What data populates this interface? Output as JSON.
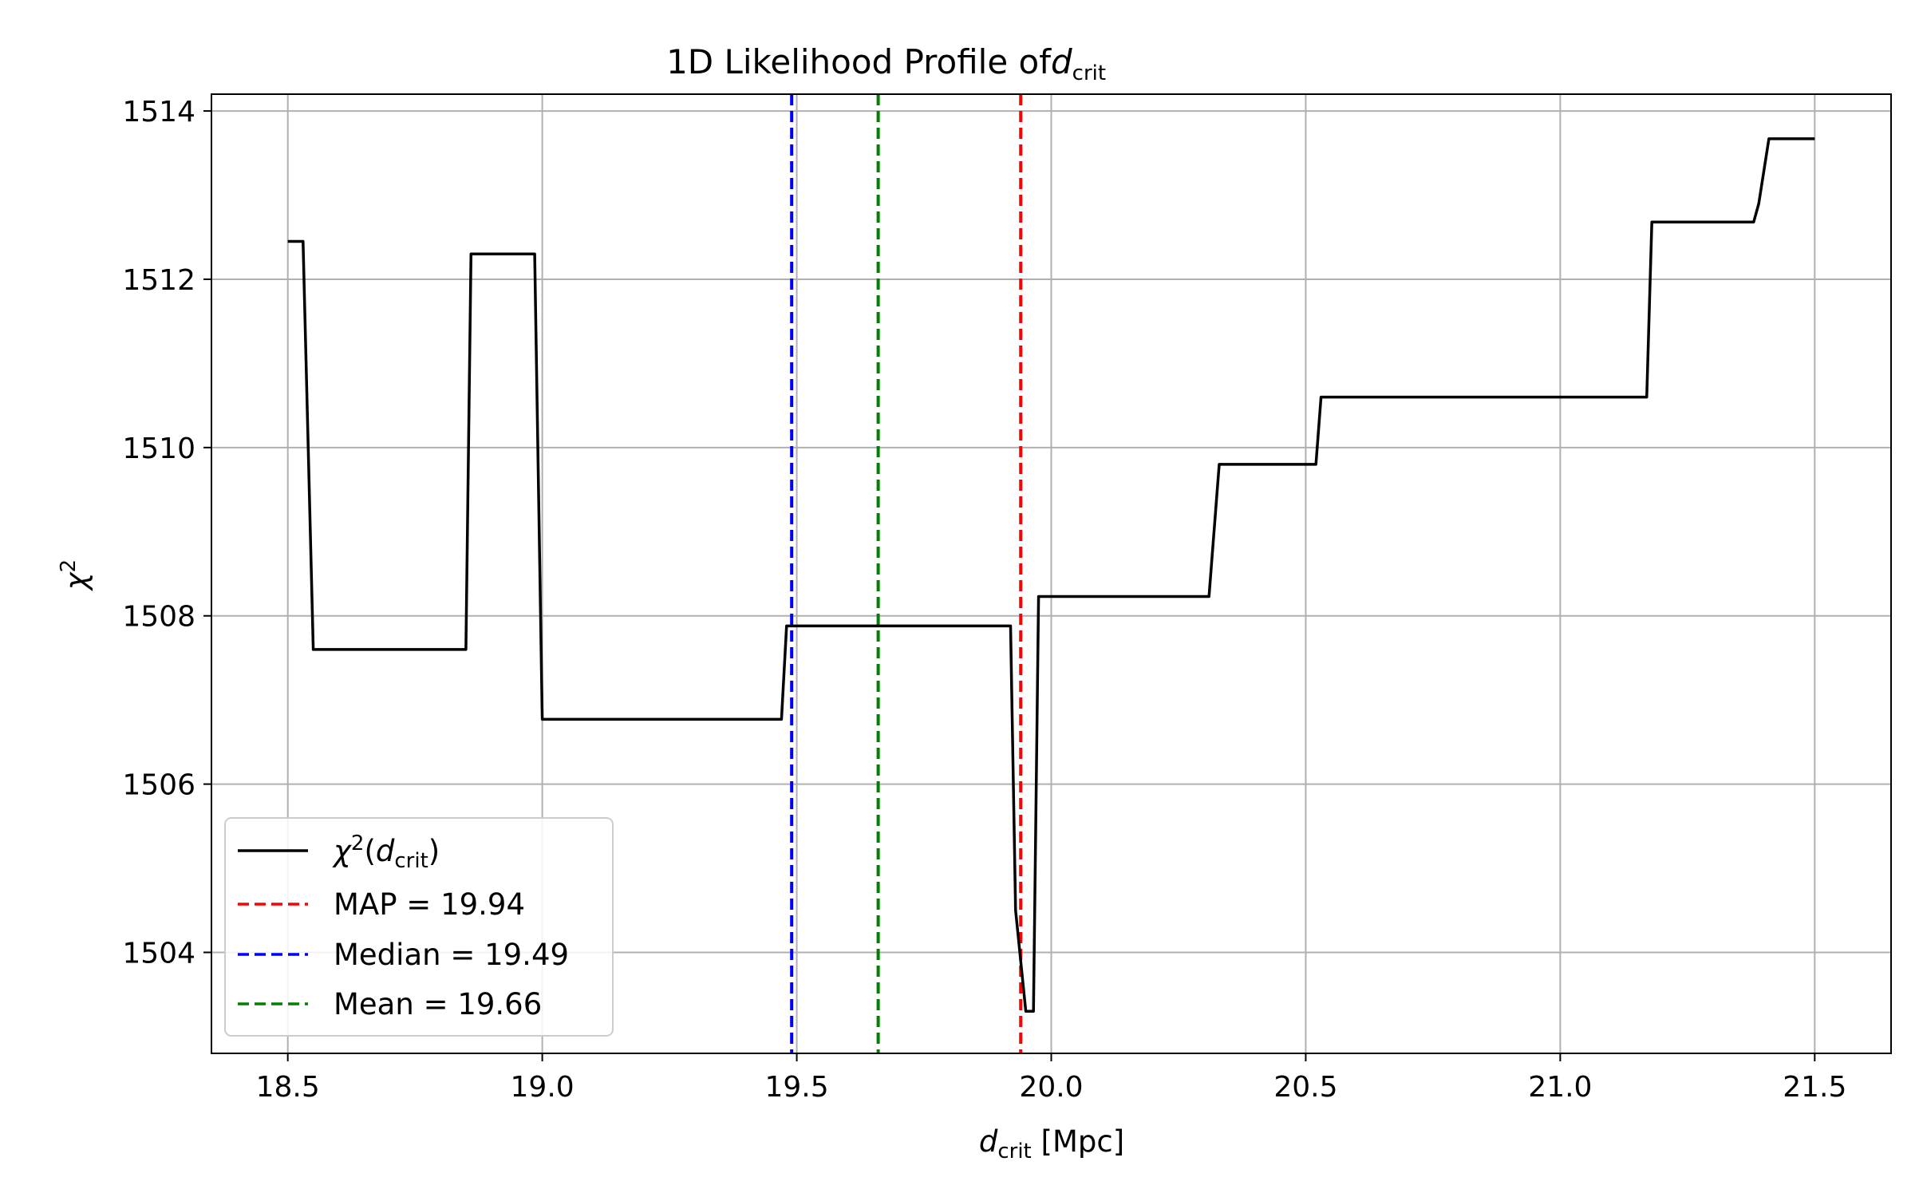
{
  "chart_data": {
    "type": "line",
    "title": "1D Likelihood Profile of d_crit",
    "title_parts": {
      "text": "1D Likelihood Profile of ",
      "var": "d",
      "sub": "crit"
    },
    "xlabel": "d_crit [Mpc]",
    "xlabel_parts": {
      "var": "d",
      "sub": "crit",
      "unit": " [Mpc]"
    },
    "ylabel": "χ²",
    "ylabel_parts": {
      "symbol": "χ",
      "sup": "2"
    },
    "xlim": [
      18.35,
      21.65
    ],
    "ylim": [
      1502.8,
      1514.2
    ],
    "xticks": [
      18.5,
      19.0,
      19.5,
      20.0,
      20.5,
      21.0,
      21.5
    ],
    "xtick_labels": [
      "18.5",
      "19.0",
      "19.5",
      "20.0",
      "20.5",
      "21.0",
      "21.5"
    ],
    "yticks": [
      1504,
      1506,
      1508,
      1510,
      1512,
      1514
    ],
    "ytick_labels": [
      "1504",
      "1506",
      "1508",
      "1510",
      "1512",
      "1514"
    ],
    "grid": true,
    "legend_position": "lower-left",
    "series": [
      {
        "name": "χ²(d_crit)",
        "color": "#000000",
        "style": "solid",
        "x": [
          18.5,
          18.53,
          18.55,
          18.85,
          18.86,
          18.985,
          19.0,
          19.47,
          19.48,
          19.92,
          19.93,
          19.95,
          19.965,
          19.975,
          20.31,
          20.33,
          20.52,
          20.53,
          21.17,
          21.18,
          21.38,
          21.39,
          21.41,
          21.5
        ],
        "y": [
          1512.45,
          1512.45,
          1507.6,
          1507.6,
          1512.3,
          1512.3,
          1506.77,
          1506.77,
          1507.88,
          1507.88,
          1504.5,
          1503.3,
          1503.3,
          1508.23,
          1508.23,
          1509.8,
          1509.8,
          1510.6,
          1510.6,
          1512.68,
          1512.68,
          1512.9,
          1513.67,
          1513.67
        ]
      }
    ],
    "vlines": [
      {
        "name": "MAP",
        "value": 19.94,
        "color": "#ff0000",
        "style": "dashed"
      },
      {
        "name": "Median",
        "value": 19.49,
        "color": "#0000ff",
        "style": "dashed"
      },
      {
        "name": "Mean",
        "value": 19.66,
        "color": "#008000",
        "style": "dashed"
      }
    ],
    "legend": {
      "series_label_parts": {
        "symbol": "χ",
        "sup": "2",
        "open": "(",
        "var": "d",
        "sub": "crit",
        "close": ")"
      },
      "entries": [
        {
          "label": "MAP = 19.94",
          "color": "#ff0000",
          "style": "dashed"
        },
        {
          "label": "Median = 19.49",
          "color": "#0000ff",
          "style": "dashed"
        },
        {
          "label": "Mean = 19.66",
          "color": "#008000",
          "style": "dashed"
        }
      ]
    }
  }
}
